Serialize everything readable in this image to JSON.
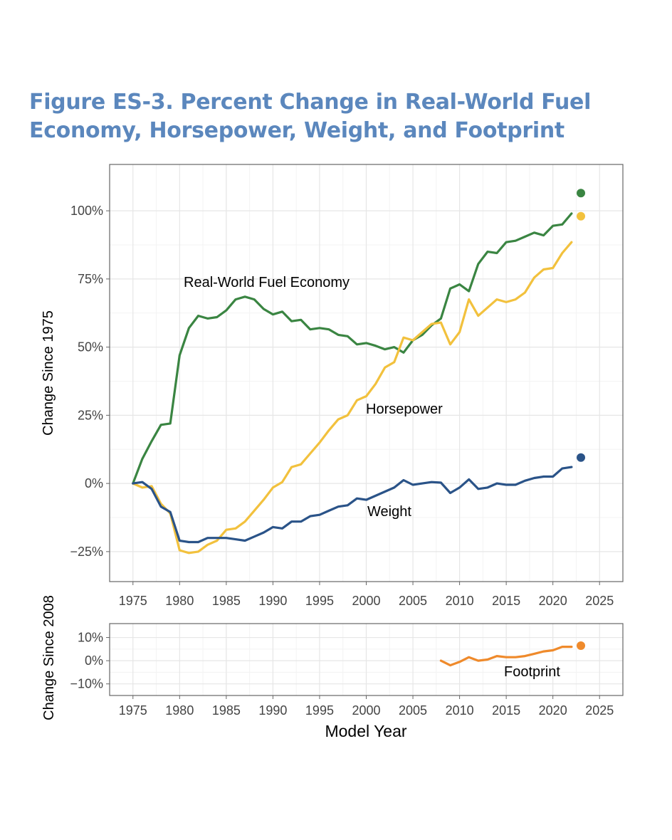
{
  "title_lines": [
    "Figure ES-3. Percent Change in Real-World Fuel",
    "Economy, Horsepower, Weight, and Footprint"
  ],
  "chart_data": [
    {
      "type": "line",
      "ylabel": "Change Since 1975",
      "xlim": [
        1972.5,
        2027.5
      ],
      "ylim": [
        -36,
        117
      ],
      "x_ticks": [
        1975,
        1980,
        1985,
        1990,
        1995,
        2000,
        2005,
        2010,
        2015,
        2020,
        2025
      ],
      "x_tick_labels": [
        "1975",
        "1980",
        "1985",
        "1990",
        "1995",
        "2000",
        "2005",
        "2010",
        "2015",
        "2020",
        "2025"
      ],
      "y_ticks": [
        -25,
        0,
        25,
        50,
        75,
        100
      ],
      "y_tick_labels": [
        "−25%",
        "0%",
        "25%",
        "50%",
        "75%",
        "100%"
      ],
      "grid": true,
      "series": [
        {
          "name": "Real-World Fuel Economy",
          "color": "#3a8542",
          "x": [
            1975,
            1976,
            1977,
            1978,
            1979,
            1980,
            1981,
            1982,
            1983,
            1984,
            1985,
            1986,
            1987,
            1988,
            1989,
            1990,
            1991,
            1992,
            1993,
            1994,
            1995,
            1996,
            1997,
            1998,
            1999,
            2000,
            2001,
            2002,
            2003,
            2004,
            2005,
            2006,
            2007,
            2008,
            2009,
            2010,
            2011,
            2012,
            2013,
            2014,
            2015,
            2016,
            2017,
            2018,
            2019,
            2020,
            2021,
            2022
          ],
          "values": [
            0,
            9,
            15.5,
            21.5,
            22,
            47,
            57,
            61.5,
            60.5,
            61,
            63.5,
            67.5,
            68.5,
            67.5,
            64,
            62,
            63,
            59.5,
            60,
            56.5,
            57,
            56.5,
            54.5,
            54,
            51,
            51.5,
            50.5,
            49.2,
            50,
            48,
            52.5,
            54.5,
            58,
            60.5,
            71.5,
            73,
            70.5,
            80.5,
            85,
            84.5,
            88.5,
            89,
            90.5,
            92,
            91,
            94.5,
            95,
            99
          ],
          "point": {
            "x": 2023,
            "value": 106.5
          }
        },
        {
          "name": "Horsepower",
          "color": "#f2c13d",
          "x": [
            1975,
            1976,
            1977,
            1978,
            1979,
            1980,
            1981,
            1982,
            1983,
            1984,
            1985,
            1986,
            1987,
            1988,
            1989,
            1990,
            1991,
            1992,
            1993,
            1994,
            1995,
            1996,
            1997,
            1998,
            1999,
            2000,
            2001,
            2002,
            2003,
            2004,
            2005,
            2006,
            2007,
            2008,
            2009,
            2010,
            2011,
            2012,
            2013,
            2014,
            2015,
            2016,
            2017,
            2018,
            2019,
            2020,
            2021,
            2022
          ],
          "values": [
            0,
            -1.5,
            -1,
            -7.5,
            -11,
            -24.5,
            -25.5,
            -25,
            -22.5,
            -21,
            -17,
            -16.5,
            -14,
            -10,
            -6,
            -1.5,
            0.5,
            6,
            7,
            11,
            15,
            19.5,
            23.5,
            25,
            30.5,
            32,
            36.5,
            42.5,
            44.5,
            53.5,
            52.5,
            55.5,
            58.5,
            59,
            51,
            55.5,
            67.5,
            61.5,
            64.5,
            67.5,
            66.5,
            67.5,
            70,
            75.5,
            78.5,
            79,
            84.5,
            88.5
          ],
          "point": {
            "x": 2023,
            "value": 98
          }
        },
        {
          "name": "Weight",
          "color": "#2a5388",
          "x": [
            1975,
            1976,
            1977,
            1978,
            1979,
            1980,
            1981,
            1982,
            1983,
            1984,
            1985,
            1986,
            1987,
            1988,
            1989,
            1990,
            1991,
            1992,
            1993,
            1994,
            1995,
            1996,
            1997,
            1998,
            1999,
            2000,
            2001,
            2002,
            2003,
            2004,
            2005,
            2006,
            2007,
            2008,
            2009,
            2010,
            2011,
            2012,
            2013,
            2014,
            2015,
            2016,
            2017,
            2018,
            2019,
            2020,
            2021,
            2022
          ],
          "values": [
            0,
            0.5,
            -2,
            -8.5,
            -10.5,
            -21,
            -21.5,
            -21.5,
            -20,
            -20,
            -20,
            -20.5,
            -21,
            -19.5,
            -18,
            -16,
            -16.5,
            -14,
            -14,
            -12,
            -11.5,
            -10,
            -8.5,
            -8,
            -5.5,
            -6,
            -4.5,
            -3,
            -1.5,
            1.2,
            -0.5,
            0,
            0.5,
            0.3,
            -3.5,
            -1.5,
            1.5,
            -2,
            -1.5,
            0,
            -0.5,
            -0.5,
            1,
            2,
            2.5,
            2.5,
            5.5,
            6
          ],
          "point": {
            "x": 2023,
            "value": 9.5
          }
        }
      ],
      "annotations": [
        "Real-World Fuel Economy",
        "Horsepower",
        "Weight"
      ]
    },
    {
      "type": "line",
      "xlabel": "Model Year",
      "ylabel": "Change Since 2008",
      "xlim": [
        1972.5,
        2027.5
      ],
      "ylim": [
        -15,
        16
      ],
      "x_ticks": [
        1975,
        1980,
        1985,
        1990,
        1995,
        2000,
        2005,
        2010,
        2015,
        2020,
        2025
      ],
      "x_tick_labels": [
        "1975",
        "1980",
        "1985",
        "1990",
        "1995",
        "2000",
        "2005",
        "2010",
        "2015",
        "2020",
        "2025"
      ],
      "y_ticks": [
        -10,
        0,
        10
      ],
      "y_tick_labels": [
        "−10%",
        "0%",
        "10%"
      ],
      "grid": true,
      "series": [
        {
          "name": "Footprint",
          "color": "#ef8a2b",
          "x": [
            2008,
            2009,
            2010,
            2011,
            2012,
            2013,
            2014,
            2015,
            2016,
            2017,
            2018,
            2019,
            2020,
            2021,
            2022
          ],
          "values": [
            0,
            -2,
            -0.5,
            1.5,
            0,
            0.5,
            2,
            1.5,
            1.5,
            2,
            3,
            4,
            4.5,
            6,
            6
          ],
          "point": {
            "x": 2023,
            "value": 6.5
          }
        }
      ],
      "annotations": [
        "Footprint"
      ]
    }
  ]
}
